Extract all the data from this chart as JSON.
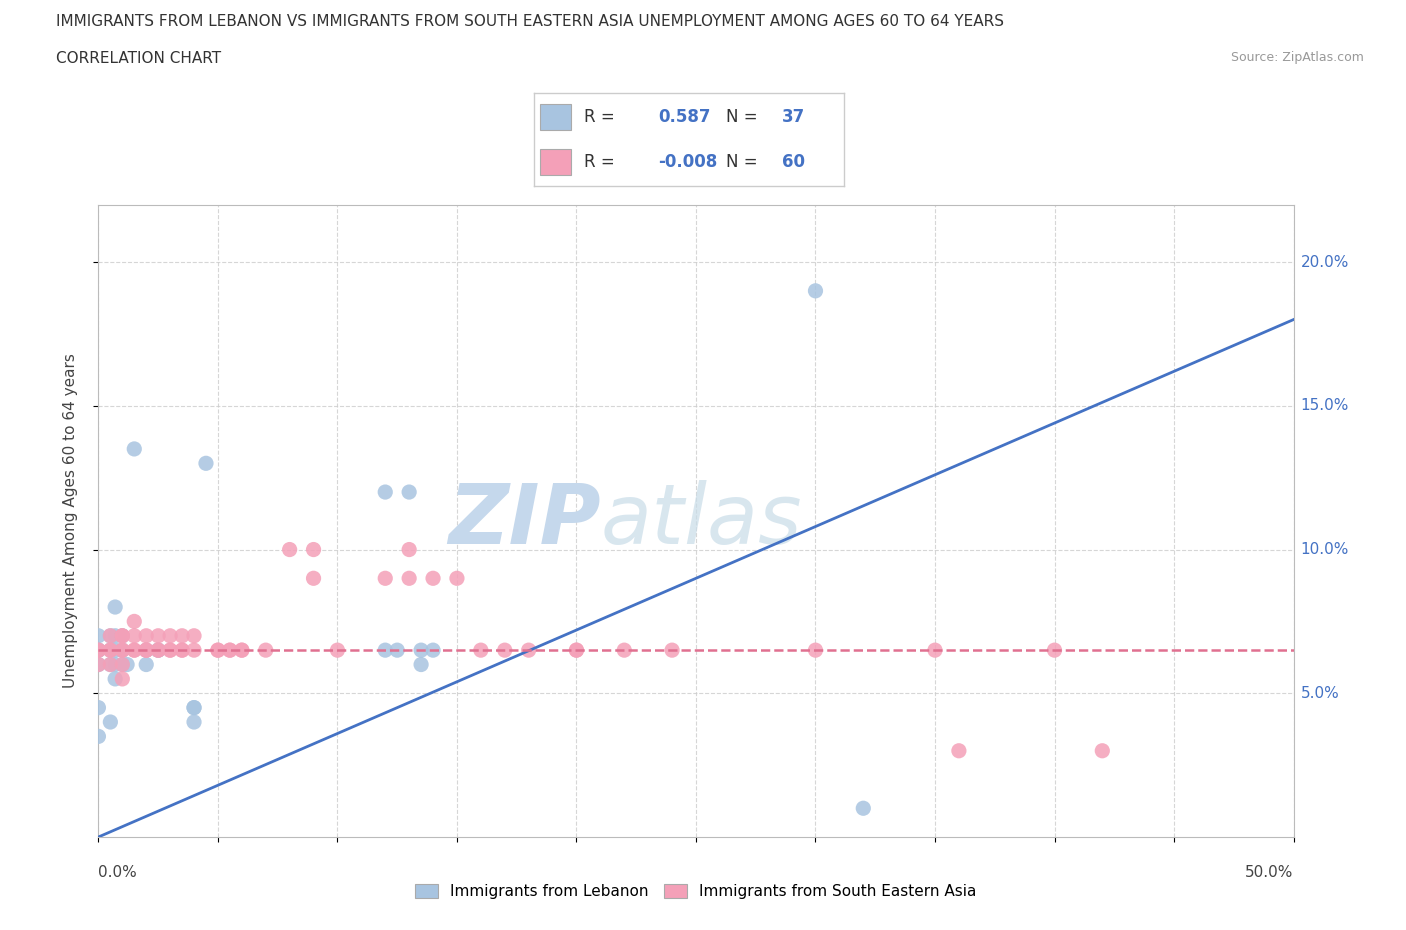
{
  "title_line1": "IMMIGRANTS FROM LEBANON VS IMMIGRANTS FROM SOUTH EASTERN ASIA UNEMPLOYMENT AMONG AGES 60 TO 64 YEARS",
  "title_line2": "CORRELATION CHART",
  "source": "Source: ZipAtlas.com",
  "ylabel": "Unemployment Among Ages 60 to 64 years",
  "legend_labels": [
    "Immigrants from Lebanon",
    "Immigrants from South Eastern Asia"
  ],
  "R_lebanon": 0.587,
  "N_lebanon": 37,
  "R_sea": -0.008,
  "N_sea": 60,
  "color_lebanon": "#a8c4e0",
  "color_sea": "#f4a0b8",
  "line_color_lebanon": "#4472c4",
  "line_color_sea": "#e07090",
  "background_color": "#ffffff",
  "grid_color": "#cccccc",
  "xlim": [
    0.0,
    0.5
  ],
  "ylim": [
    0.0,
    0.22
  ],
  "yticks": [
    0.05,
    0.1,
    0.15,
    0.2
  ],
  "xticks": [
    0.0,
    0.05,
    0.1,
    0.15,
    0.2,
    0.25,
    0.3,
    0.35,
    0.4,
    0.45,
    0.5
  ],
  "lebanon_x": [
    0.0,
    0.0,
    0.0,
    0.0,
    0.0,
    0.0,
    0.005,
    0.005,
    0.005,
    0.005,
    0.007,
    0.007,
    0.007,
    0.007,
    0.007,
    0.01,
    0.01,
    0.01,
    0.012,
    0.015,
    0.02,
    0.02,
    0.025,
    0.025,
    0.04,
    0.04,
    0.04,
    0.045,
    0.12,
    0.12,
    0.125,
    0.13,
    0.135,
    0.135,
    0.14,
    0.3,
    0.32
  ],
  "lebanon_y": [
    0.06,
    0.065,
    0.065,
    0.07,
    0.045,
    0.035,
    0.06,
    0.065,
    0.07,
    0.04,
    0.055,
    0.06,
    0.065,
    0.07,
    0.08,
    0.06,
    0.065,
    0.07,
    0.06,
    0.135,
    0.06,
    0.065,
    0.065,
    0.065,
    0.045,
    0.045,
    0.04,
    0.13,
    0.12,
    0.065,
    0.065,
    0.12,
    0.065,
    0.06,
    0.065,
    0.19,
    0.01
  ],
  "sea_x": [
    0.0,
    0.0,
    0.0,
    0.005,
    0.005,
    0.005,
    0.005,
    0.01,
    0.01,
    0.01,
    0.01,
    0.01,
    0.01,
    0.015,
    0.015,
    0.015,
    0.015,
    0.02,
    0.02,
    0.02,
    0.02,
    0.025,
    0.025,
    0.025,
    0.03,
    0.03,
    0.03,
    0.035,
    0.035,
    0.035,
    0.04,
    0.04,
    0.05,
    0.05,
    0.055,
    0.055,
    0.06,
    0.06,
    0.07,
    0.08,
    0.09,
    0.09,
    0.1,
    0.12,
    0.13,
    0.13,
    0.14,
    0.15,
    0.16,
    0.17,
    0.18,
    0.2,
    0.2,
    0.22,
    0.24,
    0.3,
    0.35,
    0.36,
    0.4,
    0.42
  ],
  "sea_y": [
    0.065,
    0.065,
    0.06,
    0.065,
    0.065,
    0.07,
    0.06,
    0.065,
    0.065,
    0.07,
    0.06,
    0.055,
    0.07,
    0.065,
    0.065,
    0.07,
    0.075,
    0.065,
    0.065,
    0.07,
    0.065,
    0.065,
    0.07,
    0.065,
    0.065,
    0.065,
    0.07,
    0.065,
    0.065,
    0.07,
    0.065,
    0.07,
    0.065,
    0.065,
    0.065,
    0.065,
    0.065,
    0.065,
    0.065,
    0.1,
    0.09,
    0.1,
    0.065,
    0.09,
    0.09,
    0.1,
    0.09,
    0.09,
    0.065,
    0.065,
    0.065,
    0.065,
    0.065,
    0.065,
    0.065,
    0.065,
    0.065,
    0.03,
    0.065,
    0.03
  ],
  "line_lb_x0": 0.0,
  "line_lb_y0": 0.0,
  "line_lb_x1": 0.5,
  "line_lb_y1": 0.18,
  "line_sea_x0": 0.0,
  "line_sea_y0": 0.065,
  "line_sea_x1": 0.5,
  "line_sea_y1": 0.065
}
